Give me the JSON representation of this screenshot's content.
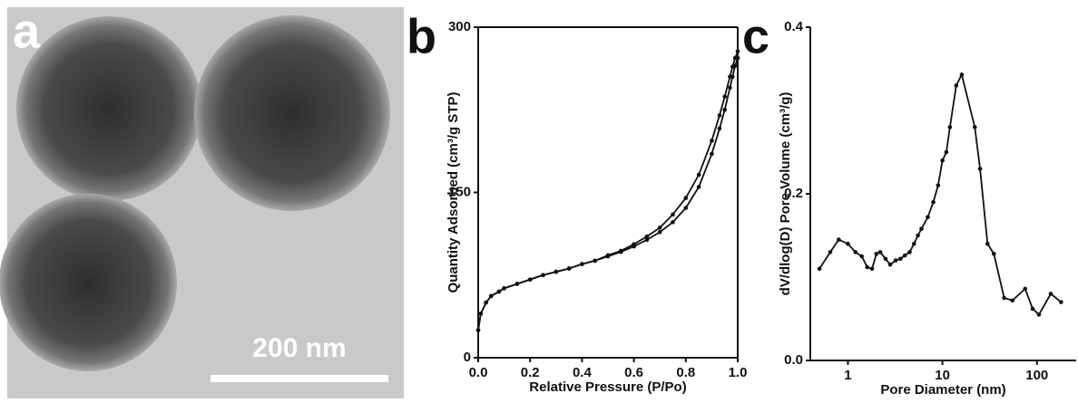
{
  "panel_a": {
    "label": "a",
    "scale_bar": "200 nm"
  },
  "chart_data": [
    {
      "type": "line",
      "label": "b",
      "xlabel": "Relative Pressure (P/Po)",
      "ylabel": "Quantity Adsorbed (cm³/g STP)",
      "x": [
        0.0,
        0.01,
        0.03,
        0.05,
        0.08,
        0.1,
        0.15,
        0.2,
        0.25,
        0.3,
        0.35,
        0.4,
        0.45,
        0.5,
        0.55,
        0.6,
        0.65,
        0.7,
        0.75,
        0.8,
        0.85,
        0.9,
        0.93,
        0.95,
        0.97,
        0.98,
        0.99,
        1.0
      ],
      "series": [
        {
          "color": "#111111",
          "values": [
            25,
            40,
            50,
            56,
            60,
            63,
            67,
            71,
            75,
            78,
            81,
            85,
            88,
            92,
            96,
            101,
            107,
            114,
            123,
            136,
            155,
            185,
            208,
            225,
            245,
            255,
            265,
            272
          ]
        },
        {
          "color": "#111111",
          "values": [
            25,
            40,
            50,
            56,
            60,
            63,
            67,
            71,
            75,
            78,
            81,
            85,
            88,
            93,
            97,
            103,
            110,
            118,
            130,
            145,
            166,
            197,
            220,
            237,
            255,
            264,
            272,
            278
          ]
        }
      ],
      "marker": true,
      "frame": true,
      "log_x": false,
      "xlim": [
        0,
        1
      ],
      "ylim": [
        0,
        300
      ],
      "xticks": [
        {
          "value": 0,
          "label": "0.0"
        },
        {
          "value": 0.2,
          "label": "0.2"
        },
        {
          "value": 0.4,
          "label": "0.4"
        },
        {
          "value": 0.6,
          "label": "0.6"
        },
        {
          "value": 0.8,
          "label": "0.8"
        },
        {
          "value": 1,
          "label": "1.0"
        }
      ],
      "yticks": [
        0,
        150,
        300
      ]
    },
    {
      "type": "line",
      "label": "c",
      "xlabel": "Pore Diameter (nm)",
      "ylabel": "dV/dlog(D) Pore Volume (cm³/g)",
      "x": [
        0.5,
        0.65,
        0.8,
        1.0,
        1.2,
        1.4,
        1.6,
        1.8,
        2.0,
        2.2,
        2.5,
        2.8,
        3.2,
        3.6,
        4.0,
        4.5,
        5,
        5.5,
        6,
        7,
        8,
        9,
        10,
        11,
        12,
        14,
        16,
        22,
        25,
        30,
        35,
        45,
        55,
        75,
        90,
        105,
        140,
        180
      ],
      "series": [
        {
          "color": "#111111",
          "values": [
            0.11,
            0.13,
            0.145,
            0.14,
            0.13,
            0.125,
            0.112,
            0.11,
            0.128,
            0.13,
            0.122,
            0.115,
            0.12,
            0.122,
            0.126,
            0.13,
            0.14,
            0.15,
            0.158,
            0.172,
            0.19,
            0.21,
            0.24,
            0.25,
            0.28,
            0.33,
            0.343,
            0.28,
            0.23,
            0.14,
            0.128,
            0.075,
            0.072,
            0.086,
            0.062,
            0.055,
            0.08,
            0.07
          ]
        }
      ],
      "marker": true,
      "frame": false,
      "log_x": true,
      "xlim": [
        0.4,
        260
      ],
      "ylim": [
        0,
        0.4
      ],
      "xticks": [
        1,
        10,
        100
      ],
      "yticks": [
        {
          "value": 0,
          "label": "0.0"
        },
        {
          "value": 0.2,
          "label": "0.2"
        },
        {
          "value": 0.4,
          "label": "0.4"
        }
      ]
    }
  ]
}
